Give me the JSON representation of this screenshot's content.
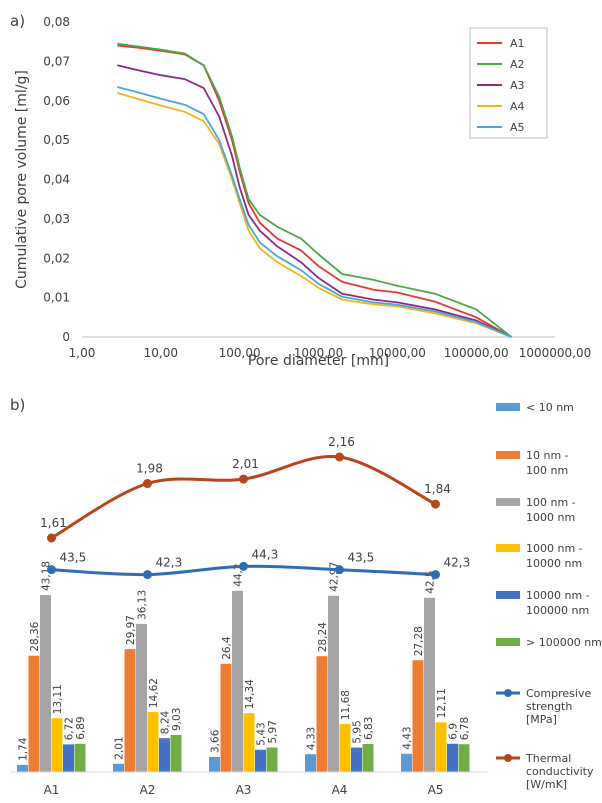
{
  "chart_data": [
    {
      "type": "line",
      "panel_label": "a)",
      "xlabel": "Pore diameter [mm]",
      "ylabel": "Cumulative pore volume [ml/g]",
      "x_scale": "log",
      "xlim": [
        1,
        1000000
      ],
      "ylim": [
        0,
        0.08
      ],
      "x_ticks": [
        1,
        10,
        100,
        1000,
        10000,
        100000,
        1000000
      ],
      "x_tick_labels": [
        "1,00",
        "10,00",
        "100,00",
        "1000,00",
        "10000,00",
        "100000,00",
        "1000000,00"
      ],
      "y_ticks": [
        0,
        0.01,
        0.02,
        0.03,
        0.04,
        0.05,
        0.06,
        0.07,
        0.08
      ],
      "y_tick_labels": [
        "0",
        "0,01",
        "0,02",
        "0,03",
        "0,04",
        "0,05",
        "0,06",
        "0,07",
        "0,08"
      ],
      "grid": false,
      "legend_position": "top-right",
      "series": [
        {
          "name": "A1",
          "color": "#e23b2e",
          "x": [
            2.8,
            5,
            10,
            20,
            35,
            55,
            80,
            100,
            130,
            180,
            300,
            600,
            1000,
            2000,
            5000,
            10000,
            30000,
            100000,
            280000
          ],
          "y": [
            0.074,
            0.0735,
            0.0727,
            0.0718,
            0.069,
            0.06,
            0.05,
            0.042,
            0.034,
            0.029,
            0.025,
            0.022,
            0.018,
            0.014,
            0.012,
            0.0113,
            0.009,
            0.005,
            0.0
          ]
        },
        {
          "name": "A2",
          "color": "#4aa84a",
          "x": [
            2.8,
            5,
            10,
            20,
            35,
            55,
            80,
            100,
            130,
            180,
            300,
            600,
            1000,
            2000,
            5000,
            10000,
            30000,
            100000,
            280000
          ],
          "y": [
            0.0745,
            0.0738,
            0.073,
            0.072,
            0.069,
            0.061,
            0.051,
            0.043,
            0.035,
            0.031,
            0.028,
            0.025,
            0.021,
            0.016,
            0.0145,
            0.013,
            0.011,
            0.007,
            0.0
          ]
        },
        {
          "name": "A3",
          "color": "#8a2b8a",
          "x": [
            2.8,
            5,
            10,
            20,
            35,
            55,
            80,
            100,
            130,
            180,
            300,
            600,
            1000,
            2000,
            5000,
            10000,
            30000,
            100000,
            280000
          ],
          "y": [
            0.069,
            0.0678,
            0.0665,
            0.0655,
            0.0632,
            0.056,
            0.046,
            0.038,
            0.031,
            0.027,
            0.023,
            0.019,
            0.015,
            0.011,
            0.0095,
            0.0088,
            0.007,
            0.0042,
            0.0
          ]
        },
        {
          "name": "A4",
          "color": "#f2b41a",
          "x": [
            2.8,
            5,
            10,
            20,
            35,
            55,
            80,
            100,
            130,
            180,
            300,
            600,
            1000,
            2000,
            5000,
            10000,
            30000,
            100000,
            280000
          ],
          "y": [
            0.062,
            0.0605,
            0.0588,
            0.0572,
            0.0548,
            0.049,
            0.04,
            0.034,
            0.027,
            0.0225,
            0.019,
            0.0155,
            0.0125,
            0.0095,
            0.0083,
            0.0078,
            0.006,
            0.0035,
            0.0
          ]
        },
        {
          "name": "A5",
          "color": "#4aa6dc",
          "x": [
            2.8,
            5,
            10,
            20,
            35,
            55,
            80,
            100,
            130,
            180,
            300,
            600,
            1000,
            2000,
            5000,
            10000,
            30000,
            100000,
            280000
          ],
          "y": [
            0.0635,
            0.0622,
            0.0605,
            0.059,
            0.0566,
            0.05,
            0.041,
            0.035,
            0.0285,
            0.024,
            0.0205,
            0.017,
            0.0135,
            0.0102,
            0.0088,
            0.0082,
            0.0065,
            0.0038,
            0.0
          ]
        }
      ]
    },
    {
      "type": "bar",
      "panel_label": "b)",
      "categories": [
        "A1",
        "A2",
        "A3",
        "A4",
        "A5"
      ],
      "legend_position": "right",
      "bar_series": [
        {
          "name": "< 10 nm",
          "color": "#5b9bd5",
          "values": [
            1.74,
            2.01,
            3.66,
            4.33,
            4.43
          ],
          "labels": [
            "1,74",
            "2,01",
            "3,66",
            "4,33",
            "4,43"
          ]
        },
        {
          "name": "10 nm - 100 nm",
          "color": "#ed7d31",
          "values": [
            28.36,
            29.97,
            26.4,
            28.24,
            27.28
          ],
          "labels": [
            "28,36",
            "29,97",
            "26,4",
            "28,24",
            "27,28"
          ]
        },
        {
          "name": "100 nm - 1000 nm",
          "color": "#a5a5a5",
          "values": [
            43.18,
            36.13,
            44.2,
            42.97,
            42.5
          ],
          "labels": [
            "43,18",
            "36,13",
            "44,2",
            "42,97",
            "42,5"
          ]
        },
        {
          "name": "1000 nm - 10000 nm",
          "color": "#ffc000",
          "values": [
            13.11,
            14.62,
            14.34,
            11.68,
            12.11
          ],
          "labels": [
            "13,11",
            "14,62",
            "14,34",
            "11,68",
            "12,11"
          ]
        },
        {
          "name": "10000 nm - 100000 nm",
          "color": "#4472c4",
          "values": [
            6.72,
            8.24,
            5.43,
            5.95,
            6.9
          ],
          "labels": [
            "6,72",
            "8,24",
            "5,43",
            "5,95",
            "6,9"
          ]
        },
        {
          "name": "> 100000 nm",
          "color": "#70ad47",
          "values": [
            6.89,
            9.03,
            5.97,
            6.83,
            6.78
          ],
          "labels": [
            "6,89",
            "9,03",
            "5,97",
            "6,83",
            "6,78"
          ]
        }
      ],
      "line_series": [
        {
          "name": "Compresive strength [MPa]",
          "name_lines": [
            "Compresive",
            "strength",
            "[MPa]"
          ],
          "color": "#2e6db4",
          "values": [
            43.5,
            42.3,
            44.3,
            43.5,
            42.3
          ],
          "labels": [
            "43,5",
            "42,3",
            "44,3",
            "43,5",
            "42,3"
          ]
        },
        {
          "name": "Thermal conductivity [W/mK]",
          "name_lines": [
            "Thermal",
            "conductivity",
            "[W/mK]"
          ],
          "color": "#b5461e",
          "values": [
            1.61,
            1.98,
            2.01,
            2.16,
            1.84
          ],
          "labels": [
            "1,61",
            "1,98",
            "2,01",
            "2,16",
            "1,84"
          ]
        }
      ]
    }
  ]
}
